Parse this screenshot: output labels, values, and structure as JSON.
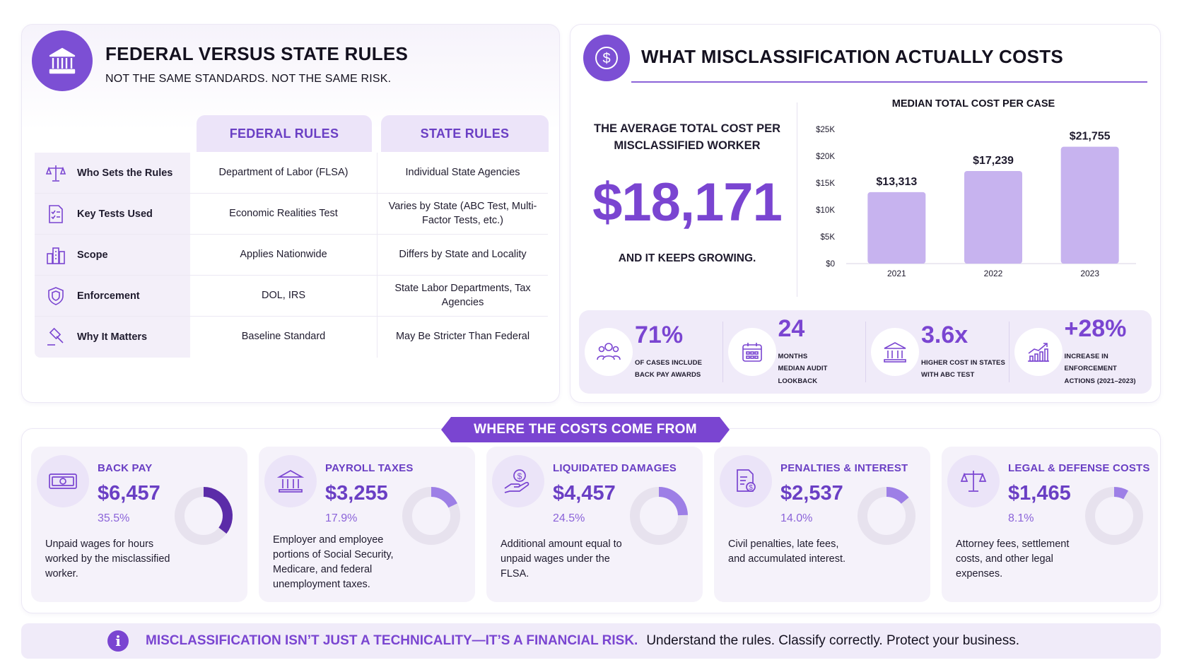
{
  "rules": {
    "title": "FEDERAL VERSUS STATE RULES",
    "subtitle": "NOT THE SAME STANDARDS. NOT THE SAME RISK.",
    "icon": "courthouse-icon",
    "columns": [
      "FEDERAL RULES",
      "STATE RULES"
    ],
    "rows": [
      {
        "label": "Who Sets the Rules",
        "icon": "scales-icon",
        "federal": "Department of Labor (FLSA)",
        "state": "Individual State Agencies"
      },
      {
        "label": "Key Tests Used",
        "icon": "checklist-document-icon",
        "federal": "Economic Realities Test",
        "state": "Varies by State (ABC Test, Multi-Factor Tests, etc.)"
      },
      {
        "label": "Scope",
        "icon": "city-buildings-icon",
        "federal": "Applies Nationwide",
        "state": "Differs by State and Locality"
      },
      {
        "label": "Enforcement",
        "icon": "shield-icon",
        "federal": "DOL, IRS",
        "state": "State Labor Departments, Tax Agencies"
      },
      {
        "label": "Why It Matters",
        "icon": "gavel-icon",
        "federal": "Baseline Standard",
        "state": "May Be Stricter Than Federal"
      }
    ]
  },
  "costs": {
    "title": "WHAT MISCLASSIFICATION ACTUALLY COSTS",
    "icon": "dollar-coin-icon",
    "avg_label": "THE AVERAGE TOTAL COST PER MISCLASSIFIED WORKER",
    "avg_value": "$18,171",
    "avg_foot": "AND IT KEEPS GROWING.",
    "stats": [
      {
        "value": "71%",
        "line1": "OF CASES INCLUDE",
        "line2": "BACK PAY AWARDS",
        "icon": "people-group-icon"
      },
      {
        "value": "24",
        "line1": "MONTHS",
        "line2": "MEDIAN AUDIT LOOKBACK",
        "icon": "calendar-icon"
      },
      {
        "value": "3.6x",
        "line1": "HIGHER COST IN STATES",
        "line2": "WITH ABC TEST",
        "icon": "courthouse-icon"
      },
      {
        "value": "+28%",
        "line1": "INCREASE IN ENFORCEMENT",
        "line2": "ACTIONS (2021–2023)",
        "icon": "trend-up-chart-icon"
      }
    ]
  },
  "chart_data": {
    "type": "bar",
    "title": "MEDIAN TOTAL COST PER CASE",
    "categories": [
      "2021",
      "2022",
      "2023"
    ],
    "values": [
      13313,
      17239,
      21755
    ],
    "value_labels": [
      "$13,313",
      "$17,239",
      "$21,755"
    ],
    "ylim": [
      0,
      25000
    ],
    "yticks": [
      0,
      5000,
      10000,
      15000,
      20000,
      25000
    ],
    "ytick_labels": [
      "$0",
      "$5K",
      "$10K",
      "$15K",
      "$20K",
      "$25K"
    ],
    "bar_color": "#c7b3ef",
    "grid": false
  },
  "breakdown": {
    "banner": "WHERE THE COSTS COME FROM",
    "items": [
      {
        "title": "BACK PAY",
        "value": "$6,457",
        "pct_label": "35.5%",
        "pct": 35.5,
        "desc": "Unpaid wages for hours worked by the misclassified worker.",
        "icon": "cash-bill-icon",
        "color": "#5b2ca8"
      },
      {
        "title": "PAYROLL TAXES",
        "value": "$3,255",
        "pct_label": "17.9%",
        "pct": 17.9,
        "desc": "Employer and employee portions of Social Security, Medicare, and federal unemployment taxes.",
        "icon": "government-building-icon",
        "color": "#9d7fe6"
      },
      {
        "title": "LIQUIDATED DAMAGES",
        "value": "$4,457",
        "pct_label": "24.5%",
        "pct": 24.5,
        "desc": "Additional amount equal to unpaid wages under the FLSA.",
        "icon": "hand-coin-icon",
        "color": "#9d7fe6"
      },
      {
        "title": "PENALTIES & INTEREST",
        "value": "$2,537",
        "pct_label": "14.0%",
        "pct": 14.0,
        "desc": "Civil penalties, late fees, and accumulated interest.",
        "icon": "invoice-dollar-icon",
        "color": "#9d7fe6"
      },
      {
        "title": "LEGAL & DEFENSE COSTS",
        "value": "$1,465",
        "pct_label": "8.1%",
        "pct": 8.1,
        "desc": "Attorney fees, settlement costs, and other legal expenses.",
        "icon": "scales-icon",
        "color": "#9d7fe6"
      }
    ]
  },
  "footer": {
    "icon": "info-icon",
    "info_glyph": "i",
    "bold": "MISCLASSIFICATION ISN’T JUST A TECHNICALITY—IT’S A FINANCIAL RISK.",
    "rest": "Understand the rules. Classify correctly. Protect your business."
  },
  "colors": {
    "accent": "#7a45d1",
    "accent_dark": "#5b2ca8",
    "accent_light": "#ece4f9",
    "bar": "#c7b3ef"
  }
}
